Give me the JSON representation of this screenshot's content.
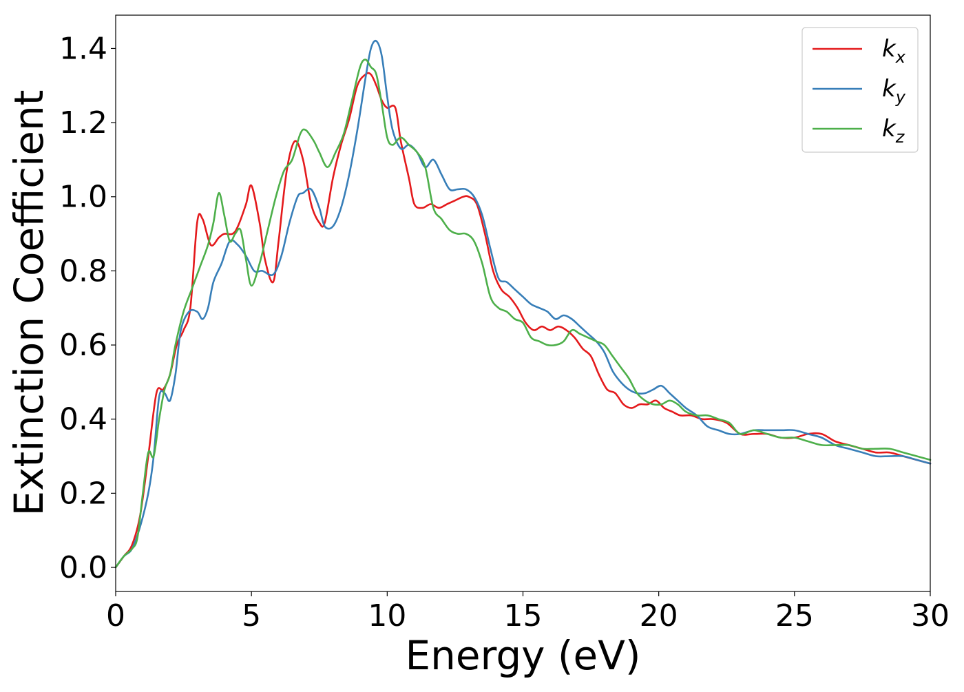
{
  "chart_data": {
    "type": "line",
    "xlabel": "Energy (eV)",
    "ylabel": "Extinction Coefficient",
    "xlim": [
      0,
      30
    ],
    "ylim": [
      -0.065,
      1.49
    ],
    "xticks": [
      0,
      5,
      10,
      15,
      20,
      25,
      30
    ],
    "xtick_labels": [
      "0",
      "5",
      "10",
      "15",
      "20",
      "25",
      "30"
    ],
    "yticks": [
      0.0,
      0.2,
      0.4,
      0.6,
      0.8,
      1.0,
      1.2,
      1.4
    ],
    "ytick_labels": [
      "0.0",
      "0.2",
      "0.4",
      "0.6",
      "0.8",
      "1.0",
      "1.2",
      "1.4"
    ],
    "grid": false,
    "legend_position": "top-right",
    "series": [
      {
        "name": "k",
        "subscript": "x",
        "color": "#e41a1c",
        "x": [
          0,
          0.3,
          0.6,
          0.9,
          1.2,
          1.5,
          1.75,
          2.0,
          2.25,
          2.5,
          2.75,
          3.0,
          3.2,
          3.5,
          3.8,
          4.0,
          4.3,
          4.5,
          4.8,
          5.0,
          5.3,
          5.5,
          5.8,
          6.0,
          6.3,
          6.6,
          6.9,
          7.2,
          7.5,
          7.7,
          8.0,
          8.3,
          8.6,
          8.9,
          9.2,
          9.4,
          9.6,
          9.8,
          10.0,
          10.3,
          10.5,
          10.8,
          11.0,
          11.3,
          11.6,
          11.9,
          12.2,
          12.5,
          12.8,
          13.0,
          13.3,
          13.6,
          13.9,
          14.2,
          14.5,
          14.8,
          15.1,
          15.4,
          15.7,
          16.0,
          16.3,
          16.6,
          16.9,
          17.2,
          17.5,
          17.8,
          18.1,
          18.4,
          18.7,
          19.0,
          19.3,
          19.6,
          19.9,
          20.2,
          20.5,
          20.8,
          21.2,
          21.6,
          22.0,
          22.5,
          23.0,
          23.5,
          24.0,
          24.5,
          25.0,
          25.5,
          26.0,
          26.5,
          27.0,
          27.5,
          28.0,
          28.5,
          29.0,
          29.5,
          30.0
        ],
        "y": [
          0.0,
          0.03,
          0.06,
          0.14,
          0.3,
          0.47,
          0.48,
          0.52,
          0.6,
          0.64,
          0.7,
          0.93,
          0.94,
          0.87,
          0.89,
          0.9,
          0.9,
          0.92,
          0.98,
          1.03,
          0.93,
          0.83,
          0.77,
          0.88,
          1.07,
          1.15,
          1.1,
          0.98,
          0.93,
          0.93,
          1.05,
          1.14,
          1.21,
          1.3,
          1.33,
          1.33,
          1.3,
          1.26,
          1.24,
          1.24,
          1.15,
          1.05,
          0.98,
          0.97,
          0.98,
          0.97,
          0.98,
          0.99,
          1.0,
          1.0,
          0.98,
          0.9,
          0.8,
          0.75,
          0.73,
          0.7,
          0.66,
          0.64,
          0.65,
          0.64,
          0.65,
          0.64,
          0.62,
          0.59,
          0.57,
          0.52,
          0.48,
          0.47,
          0.44,
          0.43,
          0.44,
          0.44,
          0.45,
          0.43,
          0.42,
          0.41,
          0.41,
          0.4,
          0.4,
          0.39,
          0.36,
          0.36,
          0.36,
          0.35,
          0.35,
          0.36,
          0.36,
          0.34,
          0.33,
          0.32,
          0.31,
          0.31,
          0.3,
          0.29,
          0.28
        ]
      },
      {
        "name": "k",
        "subscript": "y",
        "color": "#377eb8",
        "x": [
          0,
          0.3,
          0.6,
          0.9,
          1.2,
          1.4,
          1.6,
          1.8,
          2.0,
          2.2,
          2.4,
          2.7,
          3.0,
          3.2,
          3.4,
          3.6,
          3.9,
          4.2,
          4.5,
          4.8,
          5.1,
          5.4,
          5.8,
          6.1,
          6.4,
          6.7,
          6.9,
          7.2,
          7.5,
          7.7,
          8.0,
          8.3,
          8.6,
          8.9,
          9.2,
          9.4,
          9.6,
          9.8,
          10.0,
          10.2,
          10.5,
          10.8,
          11.1,
          11.4,
          11.7,
          12.0,
          12.3,
          12.6,
          12.9,
          13.2,
          13.5,
          13.8,
          14.1,
          14.4,
          14.7,
          15.0,
          15.3,
          15.6,
          15.9,
          16.2,
          16.5,
          16.8,
          17.1,
          17.4,
          17.7,
          18.0,
          18.3,
          18.6,
          18.9,
          19.2,
          19.5,
          19.8,
          20.1,
          20.4,
          20.7,
          21.0,
          21.4,
          21.8,
          22.2,
          22.6,
          23.0,
          23.5,
          24.0,
          24.5,
          25.0,
          25.5,
          26.0,
          26.5,
          27.0,
          27.5,
          28.0,
          28.5,
          29.0,
          29.5,
          30.0
        ],
        "y": [
          0.0,
          0.03,
          0.05,
          0.11,
          0.2,
          0.3,
          0.46,
          0.47,
          0.45,
          0.52,
          0.64,
          0.69,
          0.69,
          0.67,
          0.7,
          0.77,
          0.82,
          0.88,
          0.87,
          0.84,
          0.8,
          0.8,
          0.79,
          0.84,
          0.93,
          1.0,
          1.01,
          1.02,
          0.97,
          0.92,
          0.92,
          0.97,
          1.06,
          1.18,
          1.32,
          1.4,
          1.42,
          1.38,
          1.27,
          1.18,
          1.13,
          1.14,
          1.12,
          1.08,
          1.1,
          1.06,
          1.02,
          1.02,
          1.02,
          1.0,
          0.95,
          0.86,
          0.78,
          0.77,
          0.75,
          0.73,
          0.71,
          0.7,
          0.69,
          0.67,
          0.68,
          0.67,
          0.65,
          0.63,
          0.61,
          0.58,
          0.53,
          0.5,
          0.48,
          0.47,
          0.47,
          0.48,
          0.49,
          0.47,
          0.45,
          0.43,
          0.41,
          0.38,
          0.37,
          0.36,
          0.36,
          0.37,
          0.37,
          0.37,
          0.37,
          0.36,
          0.35,
          0.33,
          0.32,
          0.31,
          0.3,
          0.3,
          0.3,
          0.29,
          0.28
        ]
      },
      {
        "name": "k",
        "subscript": "z",
        "color": "#4daf4a",
        "x": [
          0,
          0.3,
          0.6,
          0.8,
          1.0,
          1.2,
          1.4,
          1.6,
          1.8,
          2.0,
          2.2,
          2.5,
          2.8,
          3.1,
          3.4,
          3.6,
          3.8,
          4.0,
          4.2,
          4.4,
          4.6,
          4.8,
          5.0,
          5.3,
          5.6,
          5.9,
          6.2,
          6.5,
          6.8,
          7.0,
          7.3,
          7.5,
          7.8,
          8.1,
          8.4,
          8.7,
          9.0,
          9.2,
          9.4,
          9.6,
          9.8,
          10.0,
          10.2,
          10.5,
          10.8,
          11.1,
          11.4,
          11.7,
          12.0,
          12.3,
          12.6,
          12.9,
          13.2,
          13.5,
          13.8,
          14.1,
          14.4,
          14.7,
          15.0,
          15.3,
          15.6,
          15.9,
          16.2,
          16.5,
          16.8,
          17.1,
          17.4,
          17.7,
          18.0,
          18.3,
          18.6,
          18.9,
          19.2,
          19.5,
          19.8,
          20.1,
          20.4,
          20.7,
          21.0,
          21.4,
          21.8,
          22.2,
          22.6,
          23.0,
          23.5,
          24.0,
          24.5,
          25.0,
          25.5,
          26.0,
          26.5,
          27.0,
          27.5,
          28.0,
          28.5,
          29.0,
          29.5,
          30.0
        ],
        "y": [
          0.0,
          0.03,
          0.05,
          0.08,
          0.2,
          0.31,
          0.3,
          0.4,
          0.48,
          0.52,
          0.6,
          0.69,
          0.75,
          0.81,
          0.87,
          0.93,
          1.01,
          0.95,
          0.88,
          0.9,
          0.91,
          0.83,
          0.76,
          0.82,
          0.91,
          1.0,
          1.07,
          1.1,
          1.17,
          1.18,
          1.15,
          1.12,
          1.08,
          1.12,
          1.17,
          1.26,
          1.35,
          1.37,
          1.35,
          1.33,
          1.25,
          1.16,
          1.14,
          1.16,
          1.14,
          1.12,
          1.08,
          0.97,
          0.94,
          0.91,
          0.9,
          0.9,
          0.88,
          0.82,
          0.73,
          0.7,
          0.69,
          0.67,
          0.66,
          0.62,
          0.61,
          0.6,
          0.6,
          0.61,
          0.64,
          0.63,
          0.62,
          0.61,
          0.6,
          0.57,
          0.54,
          0.51,
          0.47,
          0.45,
          0.44,
          0.44,
          0.45,
          0.44,
          0.42,
          0.41,
          0.41,
          0.4,
          0.39,
          0.36,
          0.37,
          0.36,
          0.35,
          0.35,
          0.34,
          0.33,
          0.33,
          0.33,
          0.32,
          0.32,
          0.32,
          0.31,
          0.3,
          0.29
        ]
      }
    ]
  }
}
